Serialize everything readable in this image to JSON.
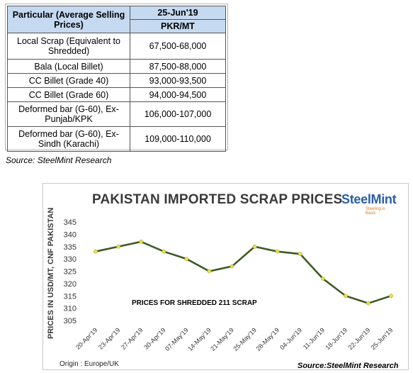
{
  "table": {
    "header_particular": "Particular (Average Selling Prices)",
    "header_date": "25-Jun'19",
    "header_unit": "PKR/MT",
    "rows": [
      {
        "item": "Local Scrap (Equivalent to Shredded)",
        "price": "67,500-68,000"
      },
      {
        "item": "Bala (Local Billet)",
        "price": "87,500-88,000"
      },
      {
        "item": "CC Billet (Grade 40)",
        "price": "93,000-93,500"
      },
      {
        "item": "CC Billet (Grade 60)",
        "price": "94,000-94,500"
      },
      {
        "item": "Deformed bar (G-60), Ex-Punjab/KPK",
        "price": "106,000-107,000"
      },
      {
        "item": "Deformed bar (G-60), Ex-Sindh (Karachi)",
        "price": "109,000-110,000"
      }
    ],
    "source": "Source: SteelMint Research"
  },
  "logo": {
    "name": "SteelMint",
    "tagline": "Steeling is Basic"
  },
  "chart_data": {
    "type": "line",
    "title": "PAKISTAN IMPORTED SCRAP PRICES",
    "ylabel": "PRICES IN USD/MT, CNF PAKISTAN",
    "xlabel": "",
    "categories": [
      "20-Apr'19",
      "23-Apr'19",
      "27-Apr'19",
      "30-Apr'19",
      "07-May'19",
      "14-May'19",
      "21-May'19",
      "25-May'19",
      "28-May'19",
      "04-Jun'19",
      "11-Jun'19",
      "18-Jun'19",
      "22-Jun'19",
      "25-Jun'19"
    ],
    "series": [
      {
        "name": "",
        "values": [
          333,
          335,
          337,
          333,
          330,
          325,
          327,
          335,
          333,
          332,
          322,
          315,
          312,
          315
        ]
      }
    ],
    "ylim": [
      305,
      345
    ],
    "yticks": [
      305,
      310,
      315,
      320,
      325,
      330,
      335,
      340,
      345
    ],
    "grid": false,
    "line_color": "#3e5a24",
    "marker_color": "#e8e04a",
    "annotation": "PRICES FOR SHREDDED  211  SCRAP",
    "origin_note": "Origin : Europe/UK",
    "source": "Source:SteelMint Research"
  }
}
